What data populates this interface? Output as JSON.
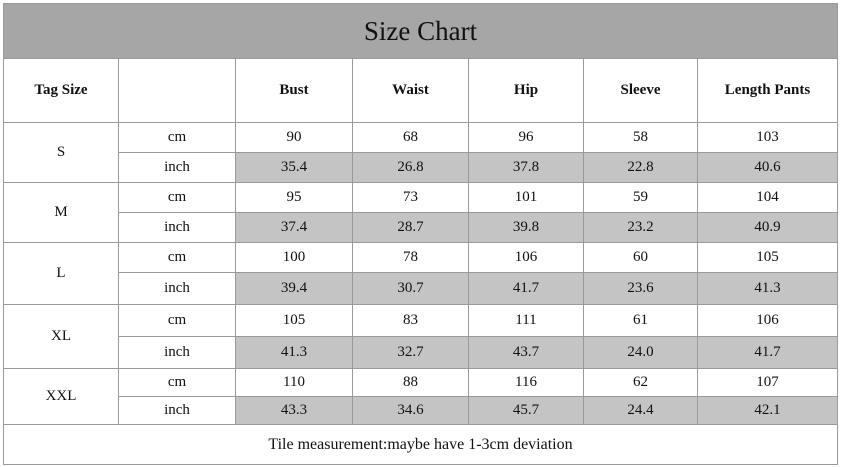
{
  "title": "Size Chart",
  "header": {
    "tag_size": "Tag Size",
    "columns": [
      "Bust",
      "Waist",
      "Hip",
      "Sleeve",
      "Length Pants"
    ]
  },
  "groups": [
    {
      "size": "S",
      "rows": [
        {
          "unit": "cm",
          "values": [
            "90",
            "68",
            "96",
            "58",
            "103"
          ]
        },
        {
          "unit": "inch",
          "values": [
            "35.4",
            "26.8",
            "37.8",
            "22.8",
            "40.6"
          ]
        }
      ]
    },
    {
      "size": "M",
      "rows": [
        {
          "unit": "cm",
          "values": [
            "95",
            "73",
            "101",
            "59",
            "104"
          ]
        },
        {
          "unit": "inch",
          "values": [
            "37.4",
            "28.7",
            "39.8",
            "23.2",
            "40.9"
          ]
        }
      ]
    },
    {
      "size": "L",
      "rows": [
        {
          "unit": "cm",
          "values": [
            "100",
            "78",
            "106",
            "60",
            "105"
          ]
        },
        {
          "unit": "inch",
          "values": [
            "39.4",
            "30.7",
            "41.7",
            "23.6",
            "41.3"
          ]
        }
      ]
    },
    {
      "size": "XL",
      "rows": [
        {
          "unit": "cm",
          "values": [
            "105",
            "83",
            "111",
            "61",
            "106"
          ]
        },
        {
          "unit": "inch",
          "values": [
            "41.3",
            "32.7",
            "43.7",
            "24.0",
            "41.7"
          ]
        }
      ]
    },
    {
      "size": "XXL",
      "rows": [
        {
          "unit": "cm",
          "values": [
            "110",
            "88",
            "116",
            "62",
            "107"
          ]
        },
        {
          "unit": "inch",
          "values": [
            "43.3",
            "34.6",
            "45.7",
            "24.4",
            "42.1"
          ]
        }
      ]
    }
  ],
  "footer": "Tile measurement:maybe have 1-3cm deviation"
}
